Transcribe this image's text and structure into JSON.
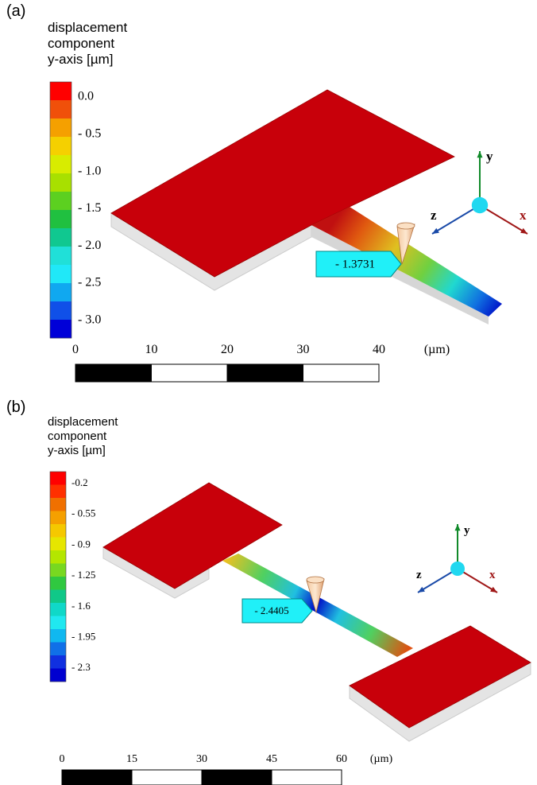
{
  "panels": [
    {
      "label": "(a)",
      "legend_title": [
        "displacement",
        "component",
        "y-axis [µm]"
      ],
      "colorbar": {
        "colors": [
          "#ff0000",
          "#f0500a",
          "#f5a000",
          "#f5d000",
          "#d8ec00",
          "#a8e000",
          "#5cd020",
          "#20c040",
          "#10c890",
          "#20e0d8",
          "#20e8f8",
          "#10a8f0",
          "#1050e8",
          "#0000d8"
        ],
        "labels": [
          "0.0",
          "- 0.5",
          "- 1.0",
          "- 1.5",
          "- 2.0",
          "- 2.5",
          "- 3.0"
        ]
      },
      "scale": {
        "labels": [
          "0",
          "10",
          "20",
          "30",
          "40"
        ],
        "unit": "(µm)"
      },
      "probe": "- 1.3731",
      "axes": [
        "y",
        "z",
        "x"
      ]
    },
    {
      "label": "(b)",
      "legend_title": [
        "displacement",
        "component",
        "y-axis [µm]"
      ],
      "colorbar": {
        "colors": [
          "#ff0000",
          "#ff3000",
          "#f07000",
          "#f5a000",
          "#f5c800",
          "#e6e600",
          "#b4e600",
          "#78d820",
          "#30c840",
          "#10c888",
          "#10d8c8",
          "#20e8f0",
          "#10b8f0",
          "#1070e8",
          "#1030e0",
          "#0000d0"
        ],
        "labels": [
          "-0.2",
          "- 0.55",
          "- 0.9",
          "- 1.25",
          "- 1.6",
          "- 1.95",
          "- 2.3"
        ]
      },
      "scale": {
        "labels": [
          "0",
          "15",
          "30",
          "45",
          "60"
        ],
        "unit": "(µm)"
      },
      "probe": "- 2.4405",
      "axes": [
        "y",
        "z",
        "x"
      ]
    }
  ]
}
